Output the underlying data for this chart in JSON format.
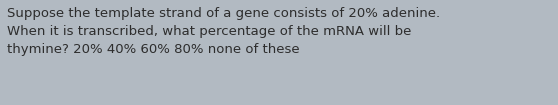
{
  "text_lines": [
    "Suppose the template strand of a gene consists of 20% adenine.",
    "When it is transcribed, what percentage of the mRNA will be",
    "thymine? 20% 40% 60% 80% none of these"
  ],
  "background_color": "#b2bac2",
  "text_color": "#2d2d2d",
  "font_size": 9.5,
  "fig_width": 5.58,
  "fig_height": 1.05,
  "dpi": 100
}
